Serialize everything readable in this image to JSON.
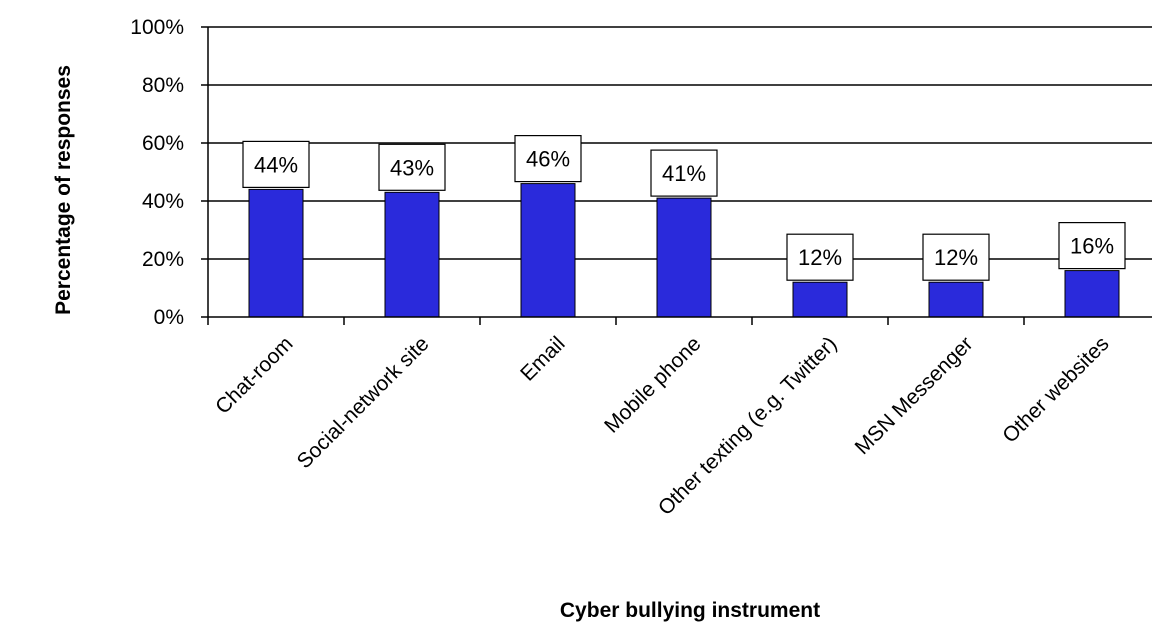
{
  "chart_data": {
    "type": "bar",
    "title": "",
    "xlabel": "Cyber bullying instrument",
    "ylabel": "Percentage of responses",
    "categories": [
      "Chat-room",
      "Social-network site",
      "Email",
      "Mobile phone",
      "Other texting (e.g. Twitter)",
      "MSN Messenger",
      "Other websites"
    ],
    "values": [
      44,
      43,
      46,
      41,
      12,
      12,
      16
    ],
    "data_labels": [
      "44%",
      "43%",
      "46%",
      "41%",
      "12%",
      "12%",
      "16%"
    ],
    "ylim": [
      0,
      100
    ],
    "yticks": [
      0,
      20,
      40,
      60,
      80,
      100
    ],
    "ytick_labels": [
      "0%",
      "20%",
      "40%",
      "60%",
      "80%",
      "100%"
    ],
    "grid": true,
    "legend": "none",
    "bar_color": "#2a2adb"
  }
}
